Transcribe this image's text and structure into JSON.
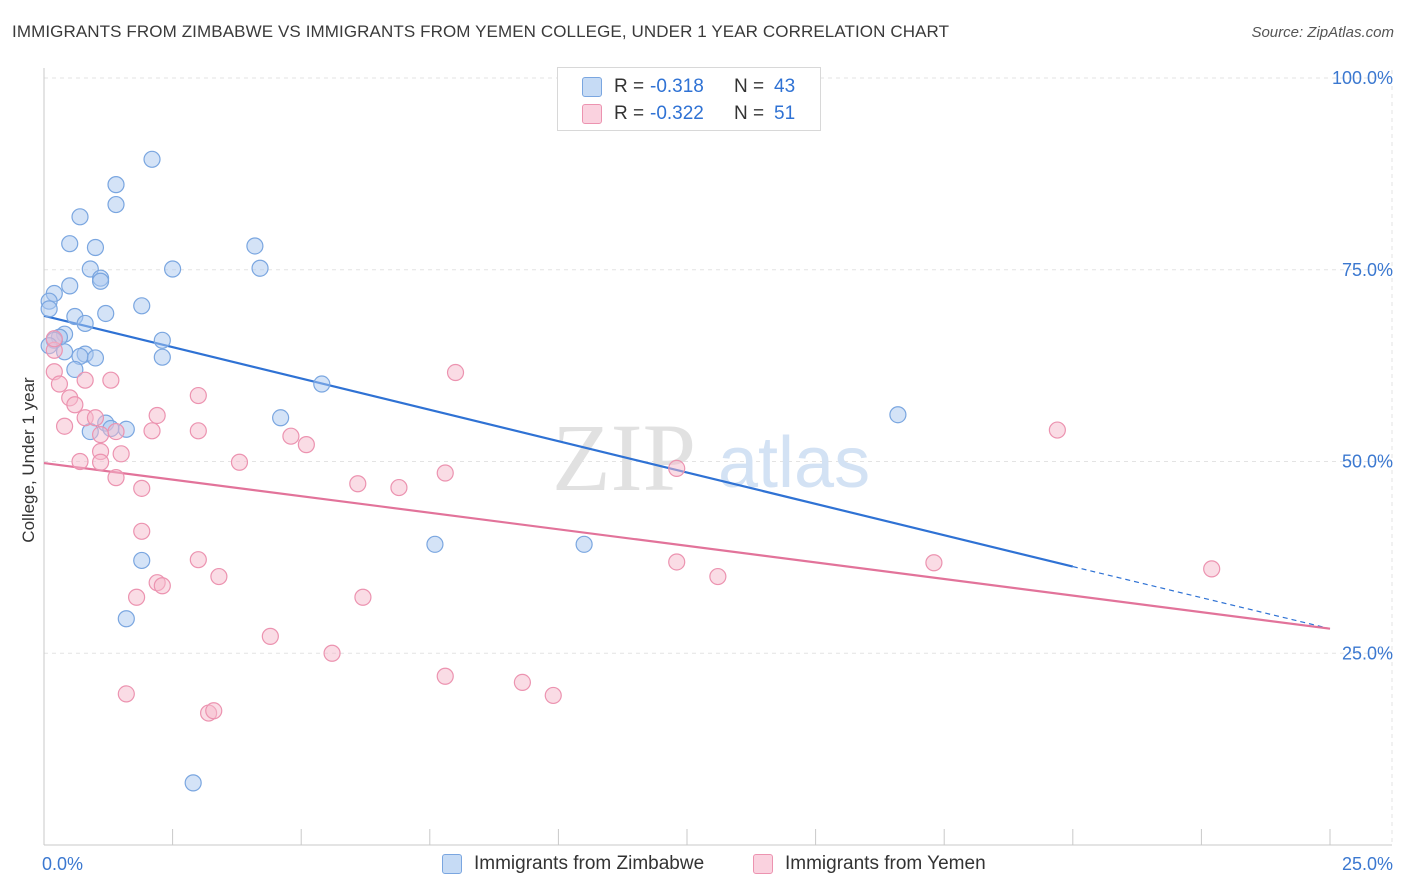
{
  "title": "IMMIGRANTS FROM ZIMBABWE VS IMMIGRANTS FROM YEMEN COLLEGE, UNDER 1 YEAR CORRELATION CHART",
  "source": "Source: ZipAtlas.com",
  "watermark": {
    "zip": "ZIP",
    "atlas": "atlas"
  },
  "legend_top": {
    "rows": [
      {
        "r_label": "R =",
        "r_value": "-0.318",
        "n_label": "N =",
        "n_value": "43",
        "color": "#a9c8f0"
      },
      {
        "r_label": "R =",
        "r_value": "-0.322",
        "n_label": "N =",
        "n_value": "51",
        "color": "#f6b9cc"
      }
    ]
  },
  "chart_data": {
    "type": "scatter",
    "xlabel": "",
    "ylabel": "College, Under 1 year",
    "xlim": [
      0,
      25
    ],
    "ylim": [
      0,
      100
    ],
    "x_tick_labels": [
      "0.0%",
      "25.0%"
    ],
    "y_ticks": [
      25,
      50,
      75,
      100
    ],
    "y_tick_labels": [
      "25.0%",
      "50.0%",
      "75.0%",
      "100.0%"
    ],
    "grid": true,
    "legend_position": "bottom",
    "series": [
      {
        "name": "Immigrants from Zimbabwe",
        "color": "#a9c8f0",
        "stroke": "#7aa6e0",
        "line_color": "#2f72d4",
        "trend": {
          "x": [
            0,
            20
          ],
          "y": [
            69,
            36.3
          ]
        },
        "trend_extension": {
          "x": [
            20,
            25
          ],
          "y": [
            36.3,
            28.2
          ]
        },
        "points": [
          [
            2.1,
            89.4
          ],
          [
            1.4,
            86.1
          ],
          [
            1.4,
            83.5
          ],
          [
            0.7,
            81.9
          ],
          [
            0.5,
            78.4
          ],
          [
            1.0,
            77.9
          ],
          [
            4.1,
            78.1
          ],
          [
            4.2,
            75.2
          ],
          [
            2.5,
            75.1
          ],
          [
            0.9,
            75.1
          ],
          [
            1.1,
            73.9
          ],
          [
            1.1,
            73.5
          ],
          [
            0.5,
            72.9
          ],
          [
            0.2,
            71.9
          ],
          [
            0.1,
            70.9
          ],
          [
            0.1,
            69.9
          ],
          [
            1.9,
            70.3
          ],
          [
            1.2,
            69.3
          ],
          [
            0.6,
            68.9
          ],
          [
            0.8,
            68.0
          ],
          [
            0.4,
            66.6
          ],
          [
            0.3,
            66.2
          ],
          [
            0.2,
            65.8
          ],
          [
            0.1,
            65.1
          ],
          [
            2.3,
            65.8
          ],
          [
            0.4,
            64.3
          ],
          [
            0.8,
            64.0
          ],
          [
            0.7,
            63.7
          ],
          [
            1.0,
            63.5
          ],
          [
            2.3,
            63.6
          ],
          [
            0.6,
            62.0
          ],
          [
            5.4,
            60.1
          ],
          [
            4.6,
            55.7
          ],
          [
            1.2,
            55.0
          ],
          [
            1.6,
            54.2
          ],
          [
            0.9,
            53.9
          ],
          [
            16.6,
            56.1
          ],
          [
            7.6,
            39.2
          ],
          [
            10.5,
            39.2
          ],
          [
            1.9,
            37.1
          ],
          [
            1.6,
            29.5
          ],
          [
            2.9,
            8.1
          ],
          [
            1.3,
            54.3
          ]
        ]
      },
      {
        "name": "Immigrants from Yemen",
        "color": "#f6b9cc",
        "stroke": "#ec93b0",
        "line_color": "#e2739a",
        "trend": {
          "x": [
            0,
            25
          ],
          "y": [
            49.8,
            28.2
          ]
        },
        "points": [
          [
            0.2,
            64.5
          ],
          [
            0.2,
            61.7
          ],
          [
            0.8,
            60.6
          ],
          [
            0.3,
            60.1
          ],
          [
            1.3,
            60.6
          ],
          [
            0.5,
            58.3
          ],
          [
            0.6,
            57.4
          ],
          [
            3.0,
            58.6
          ],
          [
            8.0,
            61.6
          ],
          [
            0.8,
            55.7
          ],
          [
            1.0,
            55.7
          ],
          [
            2.2,
            56.0
          ],
          [
            0.4,
            54.6
          ],
          [
            1.1,
            53.5
          ],
          [
            1.4,
            53.9
          ],
          [
            2.1,
            54.0
          ],
          [
            3.0,
            54.0
          ],
          [
            4.8,
            53.3
          ],
          [
            5.1,
            52.2
          ],
          [
            1.1,
            51.3
          ],
          [
            1.5,
            51.0
          ],
          [
            0.7,
            50.0
          ],
          [
            1.1,
            49.9
          ],
          [
            3.8,
            49.9
          ],
          [
            7.8,
            48.5
          ],
          [
            12.3,
            49.1
          ],
          [
            1.4,
            47.9
          ],
          [
            1.9,
            46.5
          ],
          [
            6.1,
            47.1
          ],
          [
            6.9,
            46.6
          ],
          [
            19.7,
            54.1
          ],
          [
            1.9,
            40.9
          ],
          [
            3.0,
            37.2
          ],
          [
            12.3,
            36.9
          ],
          [
            17.3,
            36.8
          ],
          [
            13.1,
            35.0
          ],
          [
            22.7,
            36.0
          ],
          [
            3.4,
            35.0
          ],
          [
            2.2,
            34.2
          ],
          [
            2.3,
            33.8
          ],
          [
            1.8,
            32.3
          ],
          [
            6.2,
            32.3
          ],
          [
            4.4,
            27.2
          ],
          [
            5.6,
            25.0
          ],
          [
            7.8,
            22.0
          ],
          [
            9.3,
            21.2
          ],
          [
            1.6,
            19.7
          ],
          [
            9.9,
            19.5
          ],
          [
            3.2,
            17.2
          ],
          [
            3.3,
            17.5
          ],
          [
            0.2,
            66.0
          ]
        ]
      }
    ]
  },
  "bottom_legend": [
    {
      "label": "Immigrants from Zimbabwe",
      "color": "#a9c8f0"
    },
    {
      "label": "Immigrants from Yemen",
      "color": "#f6b9cc"
    }
  ]
}
